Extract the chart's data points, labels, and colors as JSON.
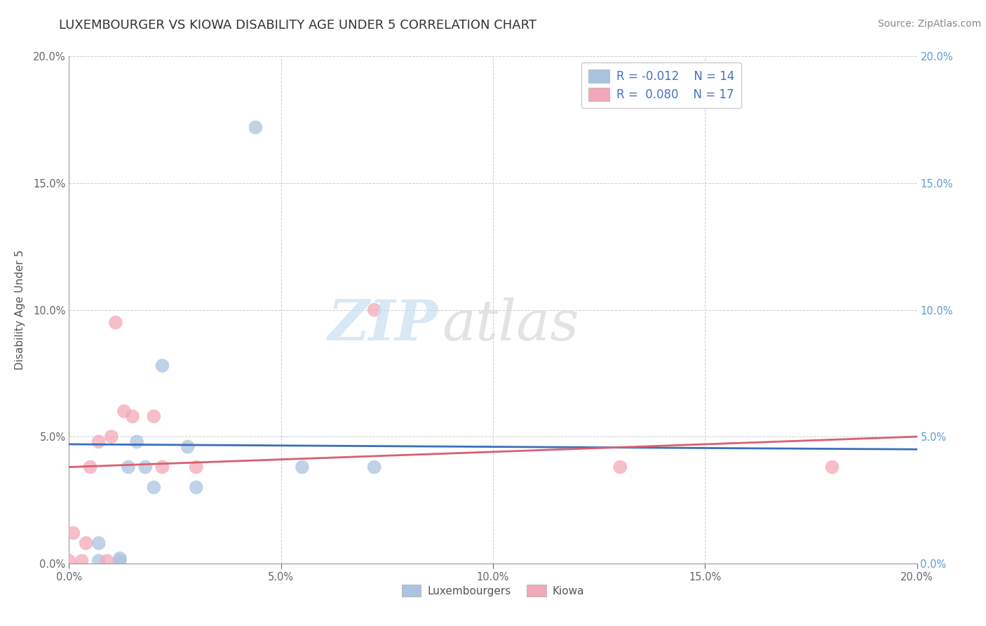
{
  "title": "LUXEMBOURGER VS KIOWA DISABILITY AGE UNDER 5 CORRELATION CHART",
  "source_text": "Source: ZipAtlas.com",
  "ylabel": "Disability Age Under 5",
  "xlim": [
    0.0,
    0.2
  ],
  "ylim": [
    0.0,
    0.2
  ],
  "legend_blue_r": "R = -0.012",
  "legend_blue_n": "N = 14",
  "legend_pink_r": "R =  0.080",
  "legend_pink_n": "N = 17",
  "blue_color": "#aac4df",
  "pink_color": "#f2a8b8",
  "blue_line_color": "#3a6fba",
  "pink_line_color": "#d96070",
  "blue_right_tick_color": "#5b9bd5",
  "watermark_zip": "ZIP",
  "watermark_atlas": "atlas",
  "blue_scatter_x": [
    0.007,
    0.007,
    0.012,
    0.012,
    0.014,
    0.016,
    0.018,
    0.02,
    0.022,
    0.028,
    0.03,
    0.044,
    0.055,
    0.072
  ],
  "blue_scatter_y": [
    0.001,
    0.008,
    0.001,
    0.002,
    0.038,
    0.048,
    0.038,
    0.03,
    0.078,
    0.046,
    0.03,
    0.172,
    0.038,
    0.038
  ],
  "pink_scatter_x": [
    0.0,
    0.001,
    0.003,
    0.004,
    0.005,
    0.007,
    0.009,
    0.01,
    0.011,
    0.013,
    0.015,
    0.02,
    0.022,
    0.03,
    0.072,
    0.13,
    0.18
  ],
  "pink_scatter_y": [
    0.001,
    0.012,
    0.001,
    0.008,
    0.038,
    0.048,
    0.001,
    0.05,
    0.095,
    0.06,
    0.058,
    0.058,
    0.038,
    0.038,
    0.1,
    0.038,
    0.038
  ],
  "grid_color": "#cccccc",
  "title_fontsize": 13,
  "label_fontsize": 11,
  "tick_fontsize": 10.5,
  "legend_fontsize": 12,
  "source_fontsize": 10,
  "marker_size": 200,
  "blue_trend_x": [
    0.0,
    0.2
  ],
  "blue_trend_y": [
    0.047,
    0.045
  ],
  "pink_trend_x": [
    0.0,
    0.2
  ],
  "pink_trend_y": [
    0.038,
    0.05
  ]
}
